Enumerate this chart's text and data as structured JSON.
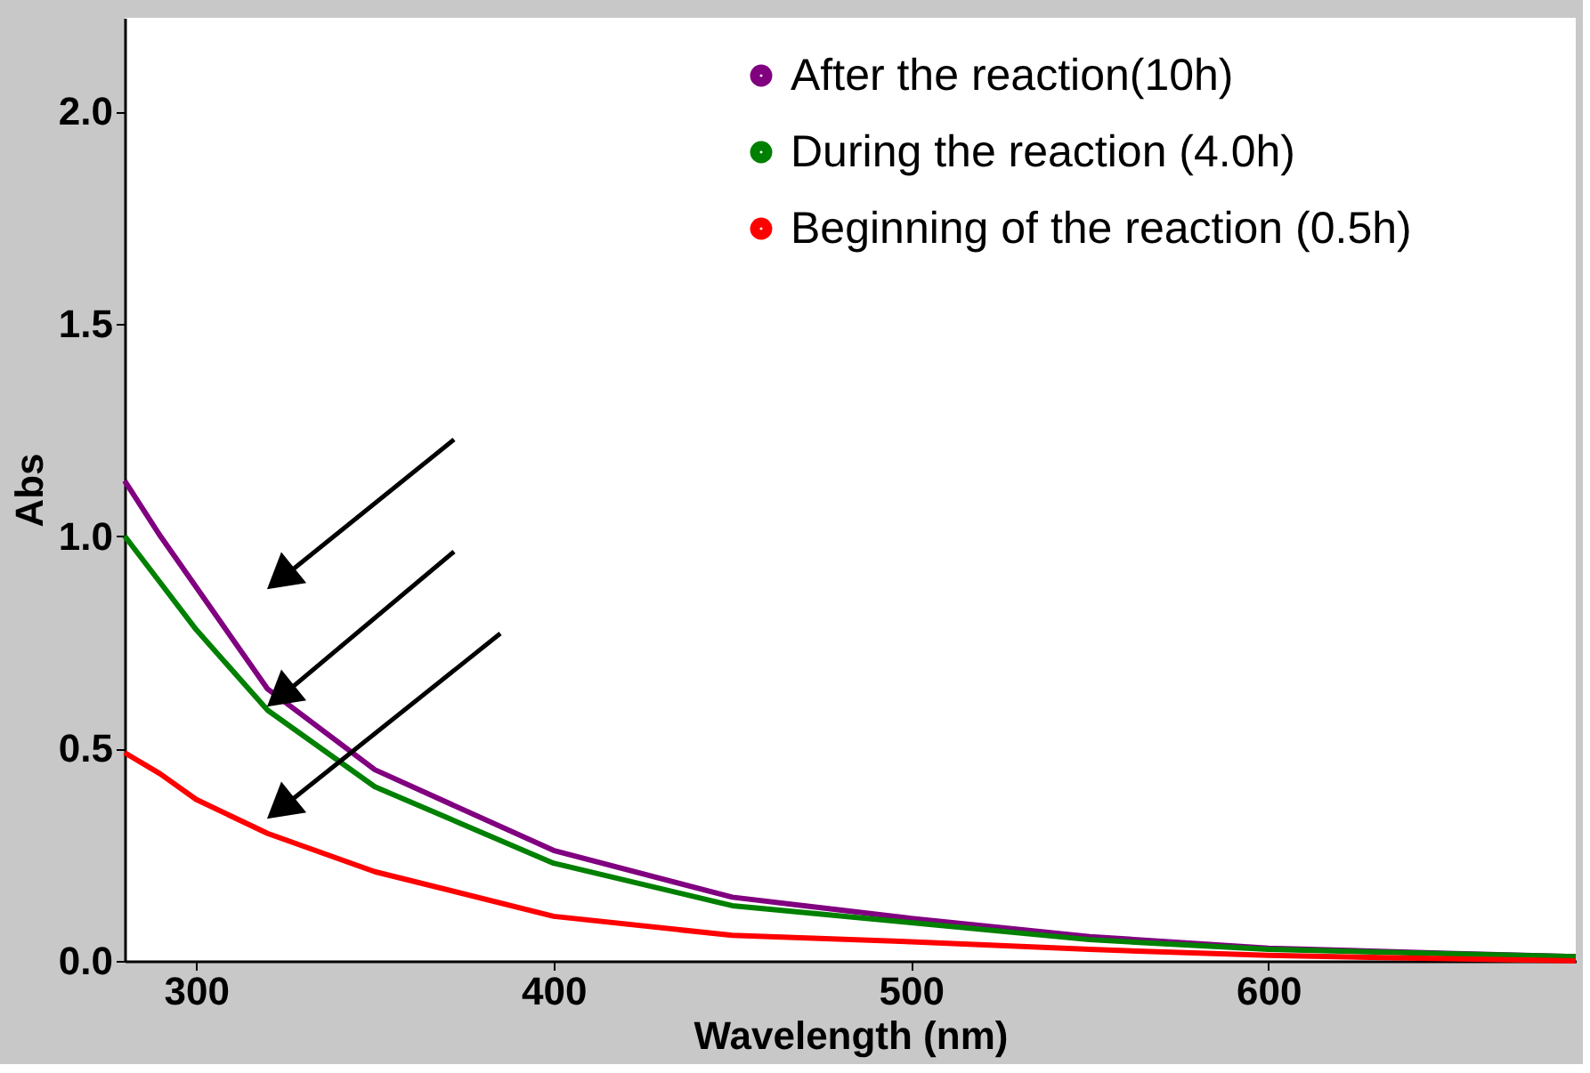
{
  "chart_data": {
    "type": "line",
    "xlabel": "Wavelength (nm)",
    "ylabel": "Abs",
    "x": [
      280,
      290,
      300,
      320,
      350,
      400,
      450,
      500,
      550,
      600,
      650,
      686
    ],
    "xlim": [
      280,
      686
    ],
    "xticks": [
      300,
      400,
      500,
      600
    ],
    "ylim": [
      0,
      2.22
    ],
    "yticks": [
      {
        "value": 0,
        "label": "0.0"
      },
      0.5,
      {
        "value": 1,
        "label": "1.0"
      },
      1.5,
      {
        "value": 2,
        "label": "2.0"
      }
    ],
    "line_style": "solid",
    "grid": false,
    "legend": "top right",
    "series": [
      {
        "name": "After the reaction(10h)",
        "color": "#800080",
        "values": [
          1.13,
          1.0,
          0.88,
          0.64,
          0.45,
          0.26,
          0.15,
          0.1,
          0.057,
          0.03,
          0.018,
          0.01
        ]
      },
      {
        "name": "During the reaction (4.0h)",
        "color": "#008000",
        "values": [
          1.0,
          0.89,
          0.78,
          0.59,
          0.41,
          0.23,
          0.13,
          0.09,
          0.05,
          0.027,
          0.017,
          0.01
        ]
      },
      {
        "name": "Beginning of the reaction (0.5h)",
        "color": "#ff0000",
        "values": [
          0.49,
          0.44,
          0.38,
          0.3,
          0.21,
          0.105,
          0.06,
          0.045,
          0.027,
          0.013,
          0.005,
          0.0
        ]
      }
    ]
  }
}
